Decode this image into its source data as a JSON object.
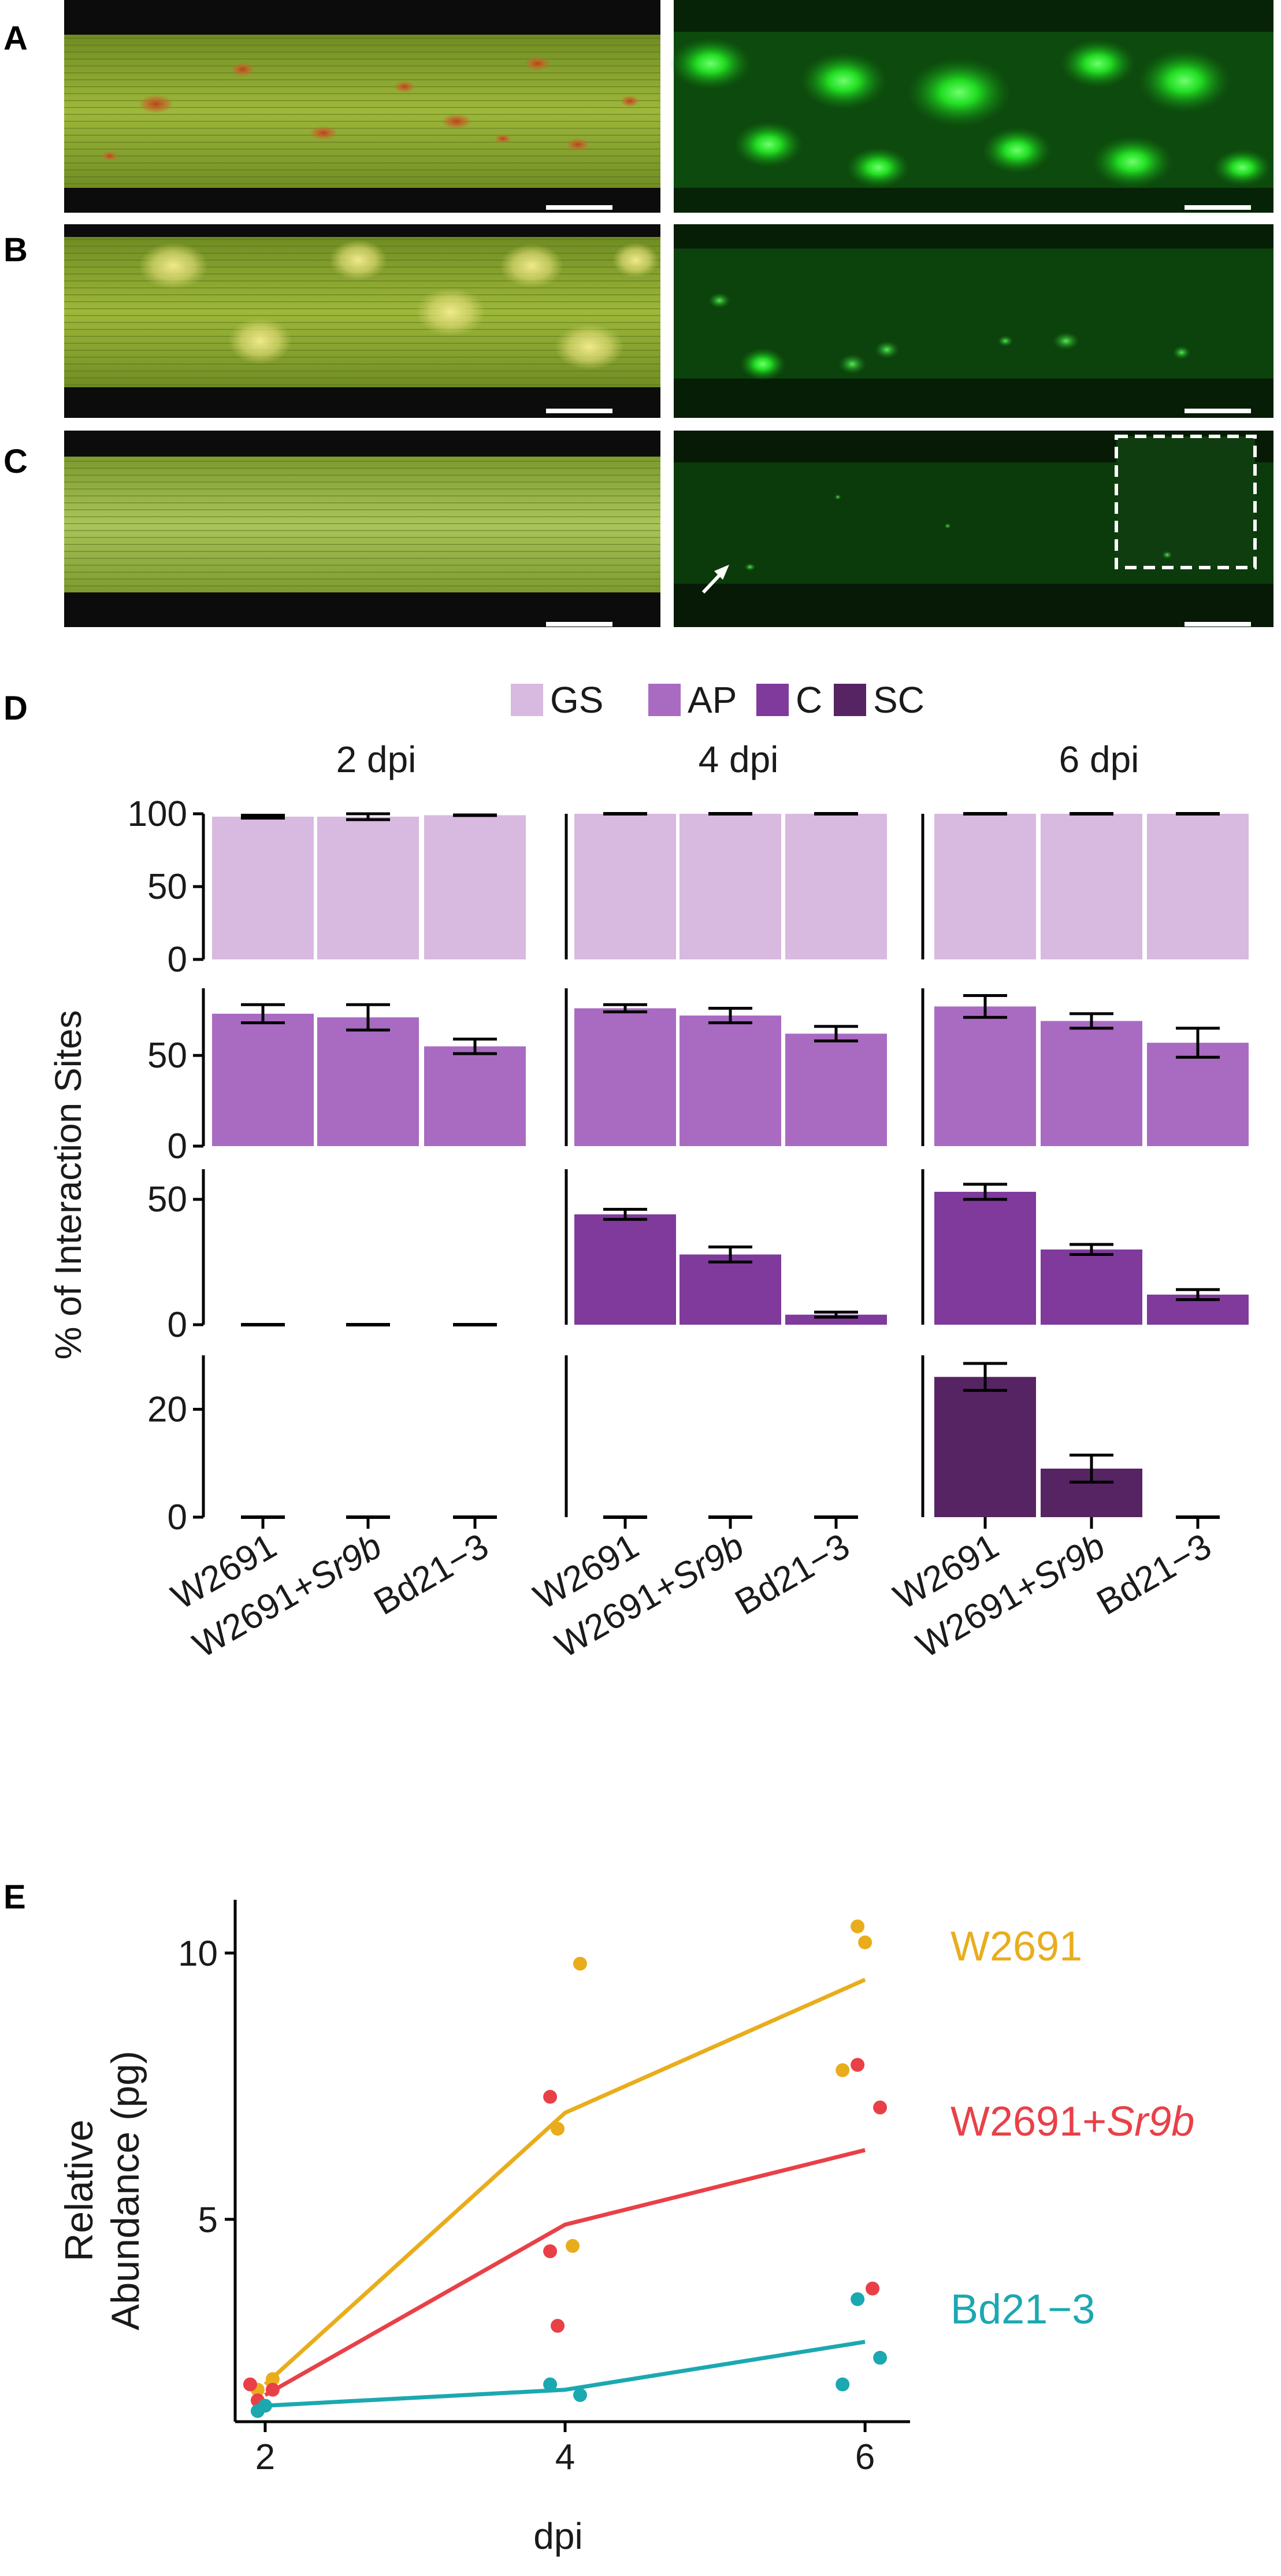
{
  "panels": {
    "A": {
      "label": "A"
    },
    "B": {
      "label": "B"
    },
    "C": {
      "label": "C"
    },
    "D": {
      "label": "D"
    },
    "E": {
      "label": "E"
    }
  },
  "colors": {
    "GS": "#d8b9e0",
    "AP": "#a96bc2",
    "C": "#7f3a9c",
    "SC": "#572463",
    "W2691": "#e9ad1c",
    "W2691_Sr9b": "#e94048",
    "Bd21_3": "#1ba8b1"
  },
  "chart_data": [
    {
      "type": "bar",
      "panel": "D",
      "title": "",
      "ylabel": "% of Interaction Sites",
      "legend": {
        "position": "top",
        "entries": [
          "GS",
          "AP",
          "C",
          "SC"
        ]
      },
      "facets": [
        "2 dpi",
        "4 dpi",
        "6 dpi"
      ],
      "categories": [
        "W2691",
        "W2691+Sr9b",
        "Bd21−3"
      ],
      "category_parts": [
        {
          "main": "W2691",
          "italic": ""
        },
        {
          "main": "W2691+",
          "italic": "Sr9b"
        },
        {
          "main": "Bd21−3",
          "italic": ""
        }
      ],
      "rows": [
        {
          "name": "GS",
          "ylim": [
            0,
            100
          ],
          "ticks": [
            0,
            50,
            100
          ],
          "values": [
            [
              98,
              98,
              99
            ],
            [
              100,
              100,
              100
            ],
            [
              100,
              100,
              100
            ]
          ],
          "errors": [
            [
              1,
              2,
              0.5
            ],
            [
              0.5,
              0.5,
              0.5
            ],
            [
              0.5,
              0.5,
              0.5
            ]
          ]
        },
        {
          "name": "AP",
          "ylim": [
            0,
            87
          ],
          "ticks": [
            0,
            50
          ],
          "values": [
            [
              73,
              71,
              55
            ],
            [
              76,
              72,
              62
            ],
            [
              77,
              69,
              57
            ]
          ],
          "errors": [
            [
              5,
              7,
              4
            ],
            [
              2,
              4,
              4
            ],
            [
              6,
              4,
              8
            ]
          ]
        },
        {
          "name": "C",
          "ylim": [
            0,
            62
          ],
          "ticks": [
            0,
            50
          ],
          "values": [
            [
              0,
              0,
              0
            ],
            [
              44,
              28,
              4
            ],
            [
              53,
              30,
              12
            ]
          ],
          "errors": [
            [
              0,
              0,
              0
            ],
            [
              2,
              3,
              1
            ],
            [
              3,
              2,
              2
            ]
          ]
        },
        {
          "name": "SC",
          "ylim": [
            0,
            30
          ],
          "ticks": [
            0,
            20
          ],
          "values": [
            [
              0,
              0,
              0
            ],
            [
              0,
              0,
              0
            ],
            [
              26,
              9,
              0
            ]
          ],
          "errors": [
            [
              0,
              0,
              0
            ],
            [
              0,
              0,
              0
            ],
            [
              2.5,
              2.5,
              0
            ]
          ]
        }
      ]
    },
    {
      "type": "line",
      "panel": "E",
      "xlabel": "dpi",
      "ylabel_lines": [
        "Relative",
        "Abundance (pg)"
      ],
      "xlim": [
        1.8,
        6.3
      ],
      "ylim": [
        1.2,
        11.0
      ],
      "xticks": [
        2,
        4,
        6
      ],
      "yticks": [
        5,
        10
      ],
      "series": [
        {
          "name": "W2691",
          "label_main": "W2691",
          "label_italic": "",
          "color": "#e9ad1c",
          "line": [
            [
              2,
              1.9
            ],
            [
              4,
              7.0
            ],
            [
              6,
              9.5
            ]
          ],
          "points": [
            [
              1.95,
              1.8
            ],
            [
              2.05,
              2.0
            ],
            [
              3.95,
              6.7
            ],
            [
              4.05,
              4.5
            ],
            [
              4.1,
              9.8
            ],
            [
              5.85,
              7.8
            ],
            [
              5.95,
              10.5
            ],
            [
              6.0,
              10.2
            ]
          ]
        },
        {
          "name": "W2691+Sr9b",
          "label_main": "W2691+",
          "label_italic": "Sr9b",
          "color": "#e94048",
          "line": [
            [
              2,
              1.7
            ],
            [
              4,
              4.9
            ],
            [
              6,
              6.3
            ]
          ],
          "points": [
            [
              1.9,
              1.9
            ],
            [
              1.95,
              1.6
            ],
            [
              2.05,
              1.8
            ],
            [
              3.9,
              7.3
            ],
            [
              3.9,
              4.4
            ],
            [
              3.95,
              3.0
            ],
            [
              5.95,
              7.9
            ],
            [
              6.05,
              3.7
            ],
            [
              6.1,
              7.1
            ]
          ]
        },
        {
          "name": "Bd21−3",
          "label_main": "Bd21−3",
          "label_italic": "",
          "color": "#1ba8b1",
          "line": [
            [
              2,
              1.5
            ],
            [
              4,
              1.8
            ],
            [
              6,
              2.7
            ]
          ],
          "points": [
            [
              1.95,
              1.4
            ],
            [
              2.0,
              1.5
            ],
            [
              3.9,
              1.9
            ],
            [
              4.1,
              1.7
            ],
            [
              5.85,
              1.9
            ],
            [
              5.95,
              3.5
            ],
            [
              6.1,
              2.4
            ]
          ]
        }
      ]
    }
  ]
}
